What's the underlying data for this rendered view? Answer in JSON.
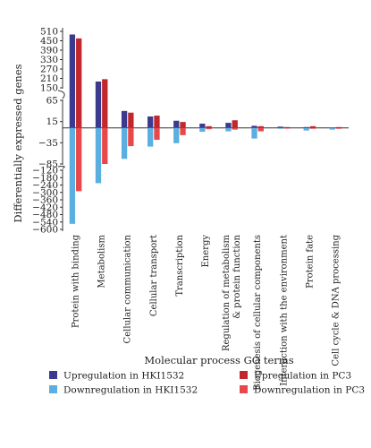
{
  "chart_data": {
    "type": "bar",
    "xlabel": "Molecular process GO terms",
    "ylabel": "Differentially expressed genes",
    "broken_y_axis": true,
    "y_segments": [
      {
        "range": [
          150,
          510
        ],
        "ticks": [
          510,
          450,
          390,
          330,
          270,
          210,
          150
        ]
      },
      {
        "range": [
          -85,
          65
        ],
        "ticks": [
          65,
          15,
          -35,
          -85
        ]
      },
      {
        "range": [
          -600,
          -120
        ],
        "ticks": [
          -120,
          -180,
          -240,
          -300,
          -360,
          -420,
          -480,
          -540,
          -600
        ]
      }
    ],
    "categories": [
      "Protein with binding",
      "Metabolism",
      "Cellular communication",
      "Cellular transport",
      "Transcription",
      "Energy",
      "Regulation of metabolism & protein function",
      "Biogenesis of cellular components",
      "Interaction with the environment",
      "Protein fate",
      "Cell cycle & DNA processing"
    ],
    "series": [
      {
        "name": "Upregulation in HKI1532",
        "color": "#3a3a8f",
        "values": [
          490,
          190,
          40,
          27,
          17,
          10,
          12,
          5,
          3,
          2,
          1
        ]
      },
      {
        "name": "Upregulation in PC3",
        "color": "#c0282d",
        "values": [
          465,
          205,
          36,
          29,
          14,
          4,
          18,
          4,
          2,
          4,
          2
        ]
      },
      {
        "name": "Downregulation in HKI1532",
        "color": "#5aaee0",
        "values": [
          -555,
          -225,
          -73,
          -44,
          -36,
          -9,
          -8,
          -25,
          -2,
          -6,
          -4
        ]
      },
      {
        "name": "Downregulation in PC3",
        "color": "#e8484a",
        "values": [
          -290,
          -85,
          -43,
          -28,
          -17,
          -3,
          -4,
          -8,
          -1,
          -2,
          -2
        ]
      }
    ],
    "legend_position": "bottom"
  }
}
